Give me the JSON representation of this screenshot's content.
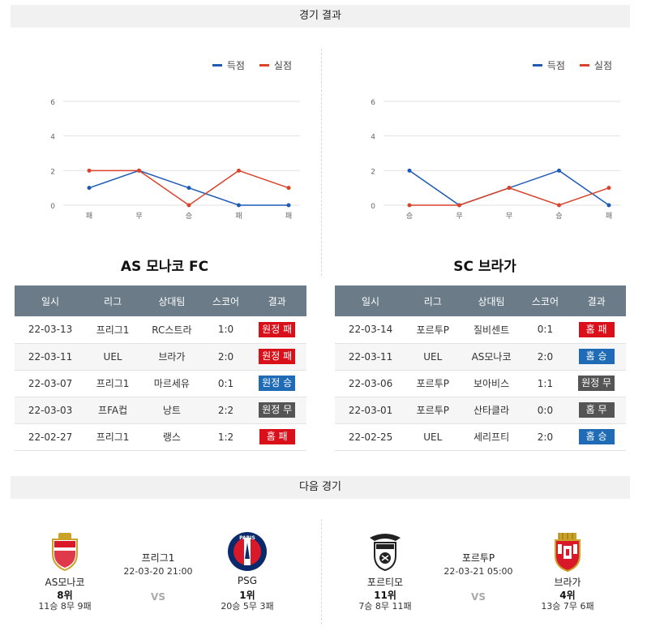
{
  "sections": {
    "results_title": "경기 결과",
    "next_title": "다음 경기"
  },
  "legend": {
    "scored": "득점",
    "conceded": "실점",
    "scored_color": "#1f5bb5",
    "conceded_color": "#d9432a"
  },
  "chart_data": [
    {
      "type": "line",
      "categories": [
        "패",
        "무",
        "승",
        "패",
        "패"
      ],
      "ylim": [
        0,
        6
      ],
      "yticks": [
        "0",
        "2",
        "4",
        "6"
      ],
      "series": [
        {
          "name": "득점",
          "values": [
            1,
            2,
            1,
            0,
            0
          ]
        },
        {
          "name": "실점",
          "values": [
            2,
            2,
            0,
            2,
            1
          ]
        }
      ]
    },
    {
      "type": "line",
      "categories": [
        "승",
        "무",
        "무",
        "승",
        "패"
      ],
      "ylim": [
        0,
        6
      ],
      "yticks": [
        "0",
        "2",
        "4",
        "6"
      ],
      "series": [
        {
          "name": "득점",
          "values": [
            2,
            0,
            1,
            2,
            0
          ]
        },
        {
          "name": "실점",
          "values": [
            0,
            0,
            1,
            0,
            1
          ]
        }
      ]
    }
  ],
  "teams": {
    "left_title": "AS 모나코 FC",
    "right_title": "SC 브라가"
  },
  "table_headers": [
    "일시",
    "리그",
    "상대팀",
    "스코어",
    "결과"
  ],
  "left_results": [
    {
      "date": "22-03-13",
      "league": "프리그1",
      "opponent": "RC스트라",
      "score": "1:0",
      "result": "원정 패",
      "color": "red"
    },
    {
      "date": "22-03-11",
      "league": "UEL",
      "opponent": "브라가",
      "score": "2:0",
      "result": "원정 패",
      "color": "red"
    },
    {
      "date": "22-03-07",
      "league": "프리그1",
      "opponent": "마르세유",
      "score": "0:1",
      "result": "원정 승",
      "color": "blue"
    },
    {
      "date": "22-03-03",
      "league": "프FA컵",
      "opponent": "낭트",
      "score": "2:2",
      "result": "원정 무",
      "color": "gray"
    },
    {
      "date": "22-02-27",
      "league": "프리그1",
      "opponent": "랭스",
      "score": "1:2",
      "result": "홈 패",
      "color": "red"
    }
  ],
  "right_results": [
    {
      "date": "22-03-14",
      "league": "포르투P",
      "opponent": "질비센트",
      "score": "0:1",
      "result": "홈 패",
      "color": "red"
    },
    {
      "date": "22-03-11",
      "league": "UEL",
      "opponent": "AS모나코",
      "score": "2:0",
      "result": "홈 승",
      "color": "blue"
    },
    {
      "date": "22-03-06",
      "league": "포르투P",
      "opponent": "보아비스",
      "score": "1:1",
      "result": "원정 무",
      "color": "gray"
    },
    {
      "date": "22-03-01",
      "league": "포르투P",
      "opponent": "산타클라",
      "score": "0:0",
      "result": "홈 무",
      "color": "gray"
    },
    {
      "date": "22-02-25",
      "league": "UEL",
      "opponent": "세리프티",
      "score": "2:0",
      "result": "홈 승",
      "color": "blue"
    }
  ],
  "next_matches": [
    {
      "league": "프리그1",
      "datetime": "22-03-20 21:00",
      "vs": "VS",
      "home": {
        "name": "AS모나코",
        "rank": "8위",
        "record": "11승 8무 9패",
        "emblem": "monaco-emblem-icon"
      },
      "away": {
        "name": "PSG",
        "rank": "1위",
        "record": "20승 5무 3패",
        "emblem": "psg-emblem-icon",
        "emblem_text": "PARIS"
      }
    },
    {
      "league": "포르투P",
      "datetime": "22-03-21 05:00",
      "vs": "VS",
      "home": {
        "name": "포르티모",
        "rank": "11위",
        "record": "7승 8무 11패",
        "emblem": "portimonense-emblem-icon"
      },
      "away": {
        "name": "브라가",
        "rank": "4위",
        "record": "13승 7무 6패",
        "emblem": "braga-emblem-icon"
      }
    }
  ]
}
